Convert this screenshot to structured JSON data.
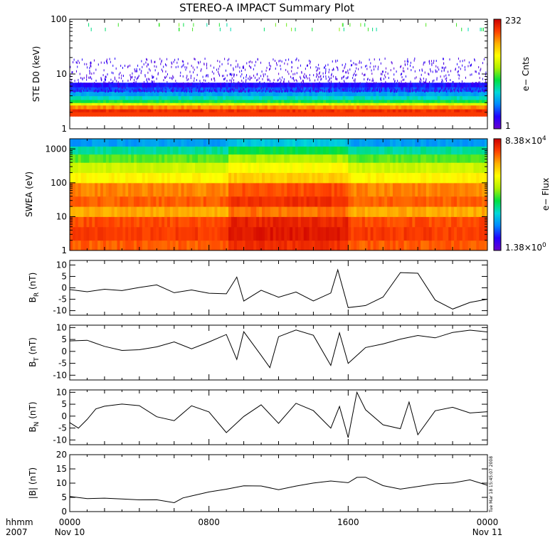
{
  "title": "STEREO-A IMPACT Summary Plot",
  "colors": {
    "cbar_stops": [
      "#6a00cc",
      "#2200ff",
      "#0088ff",
      "#00d8d8",
      "#00e040",
      "#b0f000",
      "#ffff00",
      "#ffb000",
      "#ff4000",
      "#cc0000"
    ],
    "trace": "#000000"
  },
  "chart_data": [
    {
      "type": "heatmap",
      "name": "ste_d0",
      "ylabel": "STE D0 (keV)",
      "ylog": true,
      "ylim": [
        1,
        100
      ],
      "yticks": [
        {
          "v": 1,
          "t": "1"
        },
        {
          "v": 10,
          "t": "10"
        },
        {
          "v": 100,
          "t": "100"
        }
      ],
      "colorbar": {
        "label": "e− Cnts",
        "max": "232",
        "min": "1"
      },
      "bands": [
        {
          "e": 2.0,
          "level": 0.92
        },
        {
          "e": 2.3,
          "level": 0.82
        },
        {
          "e": 2.7,
          "level": 0.62
        },
        {
          "e": 3.0,
          "level": 0.45
        },
        {
          "e": 3.4,
          "level": 0.35
        },
        {
          "e": 4.0,
          "level": 0.26
        },
        {
          "e": 4.8,
          "level": 0.18
        },
        {
          "e": 5.8,
          "level": 0.12
        }
      ]
    },
    {
      "type": "heatmap",
      "name": "swea",
      "ylabel": "SWEA (eV)",
      "ylog": true,
      "ylim": [
        1,
        2000
      ],
      "yticks": [
        {
          "v": 1,
          "t": "1"
        },
        {
          "v": 10,
          "t": "10"
        },
        {
          "v": 100,
          "t": "100"
        },
        {
          "v": 1000,
          "t": "1000"
        }
      ],
      "colorbar": {
        "label": "e− Flux",
        "max": "8.38×10",
        "max_exp": "4",
        "min": "1.38×10",
        "min_exp": "0"
      },
      "profile": [
        {
          "e": 1,
          "level": 0.86
        },
        {
          "e": 2,
          "level": 0.9
        },
        {
          "e": 5,
          "level": 0.88
        },
        {
          "e": 10,
          "level": 0.78
        },
        {
          "e": 20,
          "level": 0.86
        },
        {
          "e": 40,
          "level": 0.82
        },
        {
          "e": 100,
          "level": 0.68
        },
        {
          "e": 200,
          "level": 0.6
        },
        {
          "e": 400,
          "level": 0.5
        },
        {
          "e": 700,
          "level": 0.38
        },
        {
          "e": 1200,
          "level": 0.25
        },
        {
          "e": 2000,
          "level": 0.12
        }
      ]
    },
    {
      "type": "line",
      "name": "br",
      "ylabel_main": "B",
      "ylabel_sub": "R",
      "ylabel_unit": " (nT)",
      "ylim": [
        -12,
        12
      ],
      "yticks": [
        -10,
        -5,
        0,
        5,
        10
      ],
      "x_hours": [
        0,
        1,
        2,
        3,
        4,
        5,
        6,
        7,
        8,
        9,
        9.6,
        10,
        11,
        12,
        13,
        14,
        15,
        15.4,
        16,
        17,
        18,
        19,
        20,
        21,
        22,
        23,
        24
      ],
      "values": [
        -1,
        -2,
        -1,
        -1,
        0,
        1,
        -2,
        -1,
        -2,
        -3,
        5,
        -6,
        -1,
        -4,
        -2,
        -6,
        -2,
        8,
        -9,
        -8,
        -4,
        7,
        6,
        -5,
        -9,
        -6,
        -5
      ]
    },
    {
      "type": "line",
      "name": "bt",
      "ylabel_main": "B",
      "ylabel_sub": "T",
      "ylabel_unit": " (nT)",
      "ylim": [
        -12,
        11
      ],
      "yticks": [
        -10,
        -5,
        0,
        5,
        10
      ],
      "x_hours": [
        0,
        1,
        2,
        3,
        4,
        5,
        6,
        7,
        8,
        9,
        9.6,
        10,
        11,
        11.5,
        12,
        13,
        14,
        15,
        15.5,
        16,
        17,
        18,
        19,
        20,
        21,
        22,
        23,
        24
      ],
      "values": [
        4,
        5,
        2,
        0,
        1,
        2,
        4,
        1,
        4,
        7,
        -3,
        8,
        -2,
        -7,
        6,
        9,
        7,
        -6,
        8,
        -5,
        2,
        3,
        5,
        7,
        6,
        8,
        9,
        8
      ]
    },
    {
      "type": "line",
      "name": "bn",
      "ylabel_main": "B",
      "ylabel_sub": "N",
      "ylabel_unit": " (nT)",
      "ylim": [
        -12,
        11
      ],
      "yticks": [
        -10,
        -5,
        0,
        5,
        10
      ],
      "x_hours": [
        0,
        0.5,
        1,
        1.5,
        2,
        3,
        4,
        5,
        6,
        7,
        8,
        9,
        10,
        11,
        12,
        13,
        14,
        15,
        15.5,
        16,
        16.5,
        17,
        18,
        19,
        19.5,
        20,
        21,
        22,
        23,
        24
      ],
      "values": [
        -3,
        -5,
        -1,
        3,
        4,
        5,
        4,
        0,
        -2,
        4,
        2,
        -7,
        0,
        5,
        -3,
        5,
        2,
        -5,
        4,
        -9,
        10,
        3,
        -4,
        -5,
        6,
        -8,
        2,
        4,
        1,
        2
      ]
    },
    {
      "type": "line",
      "name": "bmag",
      "ylabel": "|B| (nT)",
      "ylim": [
        0,
        20
      ],
      "yticks": [
        0,
        5,
        10,
        15,
        20
      ],
      "x_hours": [
        0,
        1,
        2,
        3,
        4,
        5,
        6,
        6.5,
        7,
        8,
        9,
        10,
        11,
        12,
        13,
        14,
        15,
        16,
        16.5,
        17,
        18,
        19,
        20,
        21,
        22,
        23,
        24
      ],
      "values": [
        5,
        4.5,
        4.5,
        4.5,
        4,
        4,
        3,
        5,
        5.5,
        7,
        8,
        9,
        9,
        8,
        9,
        10,
        10.5,
        10,
        12,
        12,
        9,
        7.5,
        9,
        9.5,
        10,
        11,
        9
      ]
    }
  ],
  "x_axis": {
    "left_labels": [
      "hhmm",
      "2007"
    ],
    "ticks": [
      {
        "hour": 0,
        "label": "0000",
        "date": "Nov 10"
      },
      {
        "hour": 8,
        "label": "0800",
        "date": ""
      },
      {
        "hour": 16,
        "label": "1600",
        "date": ""
      },
      {
        "hour": 24,
        "label": "0000",
        "date": "Nov 11"
      }
    ]
  },
  "timestamp": "Tue Mar 18 15:45:07 2008"
}
